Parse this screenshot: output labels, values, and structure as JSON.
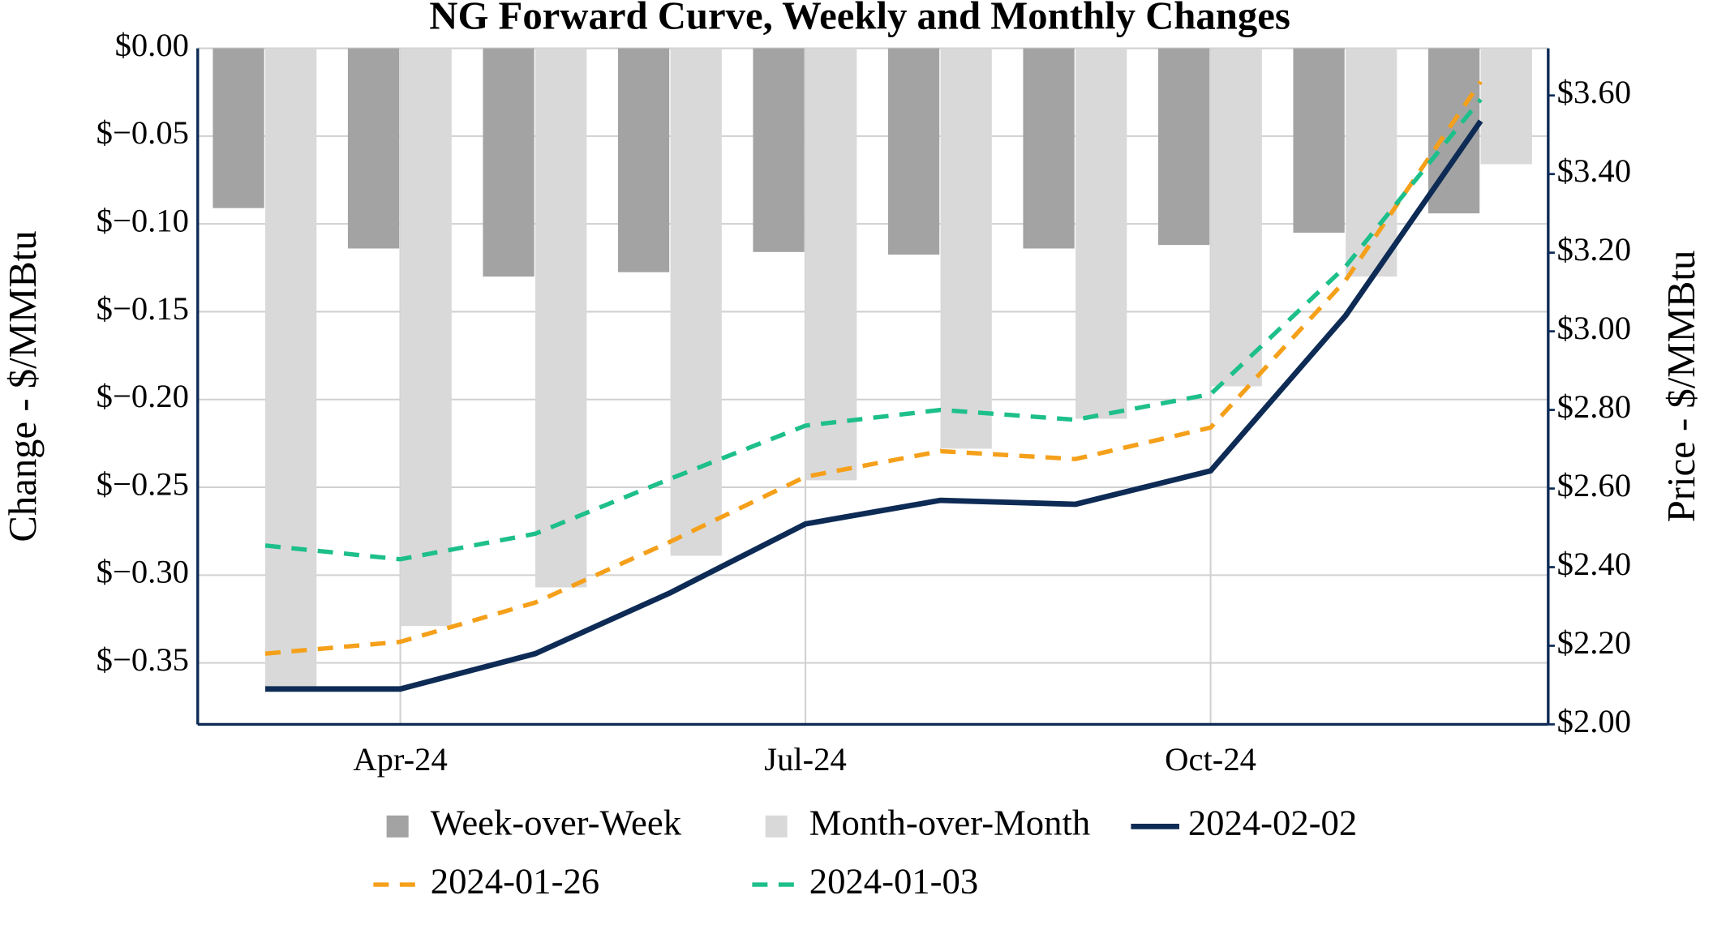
{
  "chart_data": {
    "type": "bar",
    "title": "NG Forward Curve, Weekly and Monthly Changes",
    "y_label": "Change - $/MMBtu",
    "y2_label": "Price - $/MMBtu",
    "categories": [
      null,
      "Apr-24",
      null,
      null,
      "Jul-24",
      null,
      null,
      "Oct-24",
      null,
      null
    ],
    "ylim": [
      -0.385,
      0
    ],
    "yticks": [
      {
        "value": 0,
        "label": "$0.00"
      },
      {
        "value": -0.05,
        "label": "$−0.05"
      },
      {
        "value": -0.1,
        "label": "$−0.10"
      },
      {
        "value": -0.15,
        "label": "$−0.15"
      },
      {
        "value": -0.2,
        "label": "$−0.20"
      },
      {
        "value": -0.25,
        "label": "$−0.25"
      },
      {
        "value": -0.3,
        "label": "$−0.30"
      },
      {
        "value": -0.35,
        "label": "$−0.35"
      }
    ],
    "y2lim": [
      2.0,
      3.72
    ],
    "y2ticks": [
      {
        "value": 2.0,
        "label": "$2.00"
      },
      {
        "value": 2.2,
        "label": "$2.20"
      },
      {
        "value": 2.4,
        "label": "$2.40"
      },
      {
        "value": 2.6,
        "label": "$2.60"
      },
      {
        "value": 2.8,
        "label": "$2.80"
      },
      {
        "value": 3.0,
        "label": "$3.00"
      },
      {
        "value": 3.2,
        "label": "$3.20"
      },
      {
        "value": 3.4,
        "label": "$3.40"
      },
      {
        "value": 3.6,
        "label": "$3.60"
      }
    ],
    "grid": true,
    "legend": "bottom",
    "series": [
      {
        "name": "Week-over-Week",
        "type": "bar",
        "color": "#a3a3a3",
        "values": [
          -0.091,
          -0.114,
          -0.13,
          -0.1275,
          -0.116,
          -0.1175,
          -0.114,
          -0.112,
          -0.105,
          -0.094
        ]
      },
      {
        "name": "Month-over-Month",
        "type": "bar",
        "color": "#d9d9d9",
        "values": [
          -0.364,
          -0.329,
          -0.307,
          -0.289,
          -0.246,
          -0.228,
          -0.211,
          -0.1925,
          -0.13,
          -0.066
        ]
      },
      {
        "name": "2024-02-02",
        "type": "line",
        "axis": "y2",
        "color": "#0d2b55",
        "dash": "solid",
        "values": [
          2.09,
          2.09,
          2.18,
          2.335,
          2.51,
          2.57,
          2.56,
          2.645,
          3.04,
          3.535
        ]
      },
      {
        "name": "2024-01-26",
        "type": "line",
        "axis": "y2",
        "color": "#f5a01a",
        "dash": "dashed",
        "values": [
          2.18,
          2.21,
          2.31,
          2.465,
          2.63,
          2.695,
          2.675,
          2.755,
          3.13,
          3.635
        ]
      },
      {
        "name": "2024-01-03",
        "type": "line",
        "axis": "y2",
        "color": "#1dbf8a",
        "dash": "dashed",
        "values": [
          2.455,
          2.42,
          2.485,
          2.625,
          2.76,
          2.8,
          2.775,
          2.84,
          3.165,
          3.59
        ]
      }
    ]
  }
}
